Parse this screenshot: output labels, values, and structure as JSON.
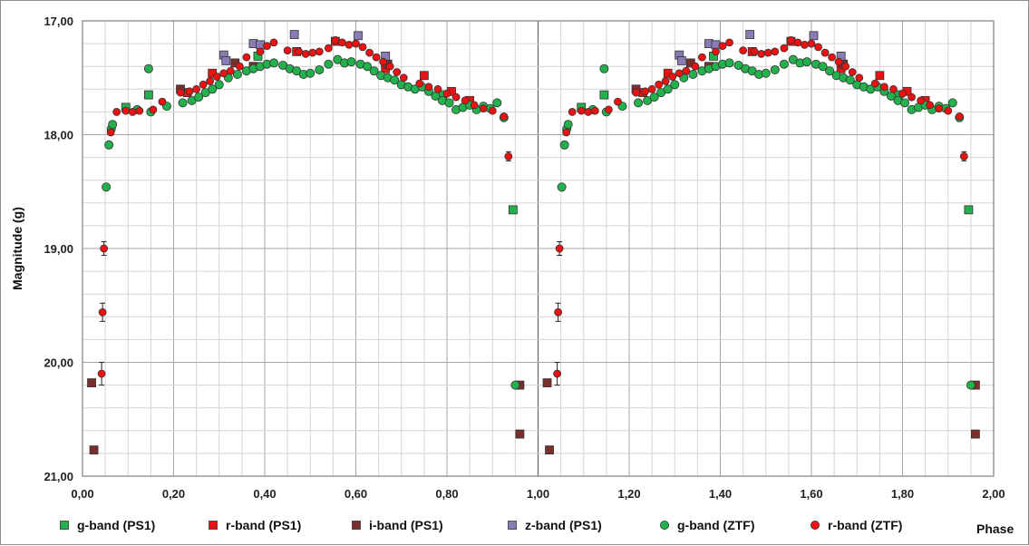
{
  "chart_data": {
    "type": "scatter",
    "title": "",
    "xlabel": "Phase",
    "ylabel": "Magnitude (g)",
    "xlim": [
      0,
      2
    ],
    "ylim": [
      21,
      17
    ],
    "y_inverted": true,
    "x_ticks": [
      0,
      0.2,
      0.4,
      0.6,
      0.8,
      1.0,
      1.2,
      1.4,
      1.6,
      1.8,
      2.0
    ],
    "x_tick_labels": [
      "0,00",
      "0,20",
      "0,40",
      "0,60",
      "0,80",
      "1,00",
      "1,20",
      "1,40",
      "1,60",
      "1,80",
      "2,00"
    ],
    "y_ticks": [
      17,
      18,
      19,
      20,
      21
    ],
    "y_tick_labels": [
      "17,00",
      "18,00",
      "19,00",
      "20,00",
      "21,00"
    ],
    "grid": true,
    "legend_position": "bottom",
    "series": [
      {
        "name": "g-band (PS1)",
        "marker": "square",
        "color": "#22b14c",
        "points": [
          [
            0.095,
            17.76
          ],
          [
            0.145,
            17.65
          ],
          [
            0.385,
            17.31
          ],
          [
            0.79,
            17.65
          ],
          [
            0.945,
            18.66
          ]
        ]
      },
      {
        "name": "r-band (PS1)",
        "marker": "square",
        "color": "#ee1111",
        "points": [
          [
            0.23,
            17.63
          ],
          [
            0.285,
            17.46
          ],
          [
            0.47,
            17.27
          ],
          [
            0.555,
            17.18
          ],
          [
            0.665,
            17.42
          ],
          [
            0.75,
            17.48
          ],
          [
            0.81,
            17.62
          ],
          [
            0.85,
            17.7
          ]
        ]
      },
      {
        "name": "i-band (PS1)",
        "marker": "square",
        "color": "#7a2e2e",
        "points": [
          [
            0.02,
            20.18
          ],
          [
            0.025,
            20.77
          ],
          [
            0.96,
            20.63
          ],
          [
            0.96,
            20.2
          ],
          [
            0.335,
            17.37
          ],
          [
            0.67,
            17.38
          ],
          [
            0.375,
            17.4
          ],
          [
            0.215,
            17.6
          ]
        ]
      },
      {
        "name": "z-band (PS1)",
        "marker": "square",
        "color": "#8a7bb5",
        "points": [
          [
            0.31,
            17.3
          ],
          [
            0.315,
            17.35
          ],
          [
            0.375,
            17.2
          ],
          [
            0.39,
            17.21
          ],
          [
            0.465,
            17.12
          ],
          [
            0.605,
            17.13
          ],
          [
            0.665,
            17.31
          ]
        ]
      },
      {
        "name": "g-band (ZTF)",
        "marker": "circle",
        "color": "#22b14c",
        "points": [
          [
            0.052,
            18.46
          ],
          [
            0.058,
            18.09
          ],
          [
            0.063,
            17.95
          ],
          [
            0.066,
            17.91
          ],
          [
            0.145,
            17.42
          ],
          [
            0.12,
            17.78
          ],
          [
            0.15,
            17.8
          ],
          [
            0.185,
            17.75
          ],
          [
            0.22,
            17.72
          ],
          [
            0.24,
            17.7
          ],
          [
            0.255,
            17.67
          ],
          [
            0.27,
            17.63
          ],
          [
            0.285,
            17.6
          ],
          [
            0.3,
            17.56
          ],
          [
            0.32,
            17.5
          ],
          [
            0.34,
            17.47
          ],
          [
            0.36,
            17.44
          ],
          [
            0.375,
            17.42
          ],
          [
            0.39,
            17.4
          ],
          [
            0.405,
            17.38
          ],
          [
            0.42,
            17.37
          ],
          [
            0.44,
            17.39
          ],
          [
            0.455,
            17.42
          ],
          [
            0.47,
            17.44
          ],
          [
            0.485,
            17.47
          ],
          [
            0.5,
            17.46
          ],
          [
            0.52,
            17.43
          ],
          [
            0.54,
            17.38
          ],
          [
            0.56,
            17.34
          ],
          [
            0.575,
            17.37
          ],
          [
            0.59,
            17.36
          ],
          [
            0.61,
            17.38
          ],
          [
            0.625,
            17.4
          ],
          [
            0.64,
            17.44
          ],
          [
            0.655,
            17.48
          ],
          [
            0.67,
            17.5
          ],
          [
            0.685,
            17.52
          ],
          [
            0.7,
            17.56
          ],
          [
            0.715,
            17.58
          ],
          [
            0.73,
            17.6
          ],
          [
            0.745,
            17.58
          ],
          [
            0.76,
            17.62
          ],
          [
            0.775,
            17.66
          ],
          [
            0.79,
            17.7
          ],
          [
            0.805,
            17.72
          ],
          [
            0.82,
            17.78
          ],
          [
            0.835,
            17.76
          ],
          [
            0.85,
            17.74
          ],
          [
            0.865,
            17.78
          ],
          [
            0.88,
            17.75
          ],
          [
            0.895,
            17.77
          ],
          [
            0.91,
            17.72
          ],
          [
            0.925,
            17.85
          ],
          [
            0.95,
            20.2
          ]
        ]
      },
      {
        "name": "r-band (ZTF)",
        "marker": "circle",
        "color": "#ee1111",
        "errorbars": true,
        "points": [
          [
            0.042,
            20.1,
            0.1
          ],
          [
            0.044,
            19.56,
            0.08
          ],
          [
            0.047,
            19.0,
            0.06
          ],
          [
            0.062,
            17.98,
            0.02
          ],
          [
            0.075,
            17.8,
            0.02
          ],
          [
            0.095,
            17.79,
            0.02
          ],
          [
            0.11,
            17.8,
            0.02
          ],
          [
            0.125,
            17.79,
            0.02
          ],
          [
            0.155,
            17.78,
            0.02
          ],
          [
            0.175,
            17.71,
            0.02
          ],
          [
            0.215,
            17.63,
            0.02
          ],
          [
            0.235,
            17.62,
            0.02
          ],
          [
            0.25,
            17.6,
            0.02
          ],
          [
            0.265,
            17.56,
            0.02
          ],
          [
            0.28,
            17.53,
            0.02
          ],
          [
            0.295,
            17.49,
            0.02
          ],
          [
            0.31,
            17.46,
            0.02
          ],
          [
            0.325,
            17.44,
            0.02
          ],
          [
            0.345,
            17.4,
            0.02
          ],
          [
            0.36,
            17.32,
            0.02
          ],
          [
            0.39,
            17.27,
            0.02
          ],
          [
            0.405,
            17.22,
            0.02
          ],
          [
            0.42,
            17.19,
            0.02
          ],
          [
            0.45,
            17.26,
            0.02
          ],
          [
            0.475,
            17.27,
            0.02
          ],
          [
            0.49,
            17.29,
            0.02
          ],
          [
            0.505,
            17.28,
            0.02
          ],
          [
            0.52,
            17.27,
            0.02
          ],
          [
            0.54,
            17.24,
            0.02
          ],
          [
            0.555,
            17.17,
            0.02
          ],
          [
            0.57,
            17.19,
            0.02
          ],
          [
            0.585,
            17.21,
            0.02
          ],
          [
            0.6,
            17.2,
            0.02
          ],
          [
            0.615,
            17.23,
            0.02
          ],
          [
            0.63,
            17.28,
            0.02
          ],
          [
            0.645,
            17.32,
            0.02
          ],
          [
            0.66,
            17.36,
            0.02
          ],
          [
            0.675,
            17.4,
            0.02
          ],
          [
            0.69,
            17.45,
            0.02
          ],
          [
            0.705,
            17.5,
            0.02
          ],
          [
            0.74,
            17.55,
            0.02
          ],
          [
            0.76,
            17.58,
            0.02
          ],
          [
            0.78,
            17.6,
            0.02
          ],
          [
            0.8,
            17.64,
            0.02
          ],
          [
            0.82,
            17.67,
            0.02
          ],
          [
            0.84,
            17.7,
            0.02
          ],
          [
            0.86,
            17.74,
            0.02
          ],
          [
            0.88,
            17.77,
            0.02
          ],
          [
            0.9,
            17.79,
            0.02
          ],
          [
            0.925,
            17.84,
            0.02
          ],
          [
            0.935,
            18.19,
            0.04
          ]
        ]
      }
    ]
  }
}
